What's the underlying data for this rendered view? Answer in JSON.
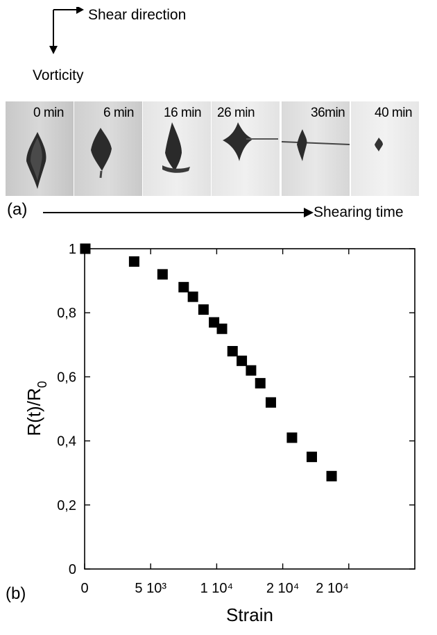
{
  "panel_a": {
    "shear_label": "Shear direction",
    "vorticity_label": "Vorticity",
    "panel_label": "(a)",
    "time_axis_label": "Shearing time",
    "frames": [
      {
        "label": "0 min"
      },
      {
        "label": "6 min"
      },
      {
        "label": "16 min"
      },
      {
        "label": "26 min"
      },
      {
        "label": "36min"
      },
      {
        "label": "40 min"
      }
    ]
  },
  "panel_b": {
    "panel_label": "(b)"
  },
  "chart_data": {
    "type": "scatter",
    "title": "",
    "xlabel": "Strain",
    "ylabel_main": "R(t)/R",
    "ylabel_sub": "0",
    "xlim": [
      0,
      25000
    ],
    "ylim": [
      0,
      1
    ],
    "x_ticks": [
      {
        "value": 0,
        "label": "0"
      },
      {
        "value": 5000,
        "label": "5 10³"
      },
      {
        "value": 10000,
        "label": "1 10⁴"
      },
      {
        "value": 15000,
        "label": "2 10⁴"
      },
      {
        "value": 20000,
        "label": "2 10⁴"
      }
    ],
    "y_ticks": [
      {
        "value": 0,
        "label": "0"
      },
      {
        "value": 0.2,
        "label": "0,2"
      },
      {
        "value": 0.4,
        "label": "0,4"
      },
      {
        "value": 0.6,
        "label": "0,6"
      },
      {
        "value": 0.8,
        "label": "0,8"
      },
      {
        "value": 1,
        "label": "1"
      }
    ],
    "marker_color": "#000000",
    "points": [
      {
        "x": 50,
        "y": 1.0
      },
      {
        "x": 3750,
        "y": 0.96
      },
      {
        "x": 5900,
        "y": 0.92
      },
      {
        "x": 7500,
        "y": 0.88
      },
      {
        "x": 8200,
        "y": 0.85
      },
      {
        "x": 9000,
        "y": 0.81
      },
      {
        "x": 9800,
        "y": 0.77
      },
      {
        "x": 10400,
        "y": 0.75
      },
      {
        "x": 11200,
        "y": 0.68
      },
      {
        "x": 11900,
        "y": 0.65
      },
      {
        "x": 12600,
        "y": 0.62
      },
      {
        "x": 13300,
        "y": 0.58
      },
      {
        "x": 14100,
        "y": 0.52
      },
      {
        "x": 15700,
        "y": 0.41
      },
      {
        "x": 17200,
        "y": 0.35
      },
      {
        "x": 18700,
        "y": 0.29
      }
    ]
  }
}
